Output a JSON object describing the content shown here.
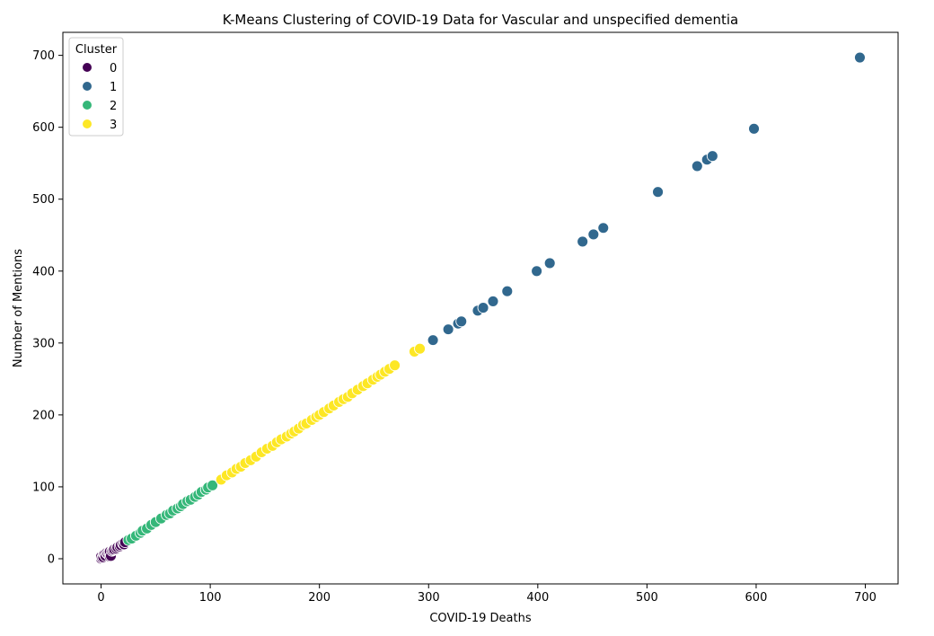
{
  "chart_data": {
    "type": "scatter",
    "title": "K-Means Clustering of COVID-19 Data for Vascular and unspecified dementia",
    "xlabel": "COVID-19 Deaths",
    "ylabel": "Number of Mentions",
    "xlim": [
      -35,
      730
    ],
    "ylim": [
      -35,
      732
    ],
    "xticks": [
      0,
      100,
      200,
      300,
      400,
      500,
      600,
      700
    ],
    "yticks": [
      0,
      100,
      200,
      300,
      400,
      500,
      600,
      700
    ],
    "grid": false,
    "legend": {
      "title": "Cluster",
      "position": "top-left",
      "entries": [
        "0",
        "1",
        "2",
        "3"
      ]
    },
    "colors": {
      "0": "#440154",
      "1": "#31688e",
      "2": "#35b779",
      "3": "#fde725"
    },
    "series": [
      {
        "name": "0",
        "points": [
          [
            0,
            0
          ],
          [
            0,
            3
          ],
          [
            1,
            1
          ],
          [
            2,
            5
          ],
          [
            2,
            2
          ],
          [
            3,
            6
          ],
          [
            4,
            4
          ],
          [
            5,
            8
          ],
          [
            6,
            7
          ],
          [
            7,
            9
          ],
          [
            8,
            3
          ],
          [
            8,
            10
          ],
          [
            9,
            4
          ],
          [
            10,
            11
          ],
          [
            11,
            12
          ],
          [
            12,
            13
          ],
          [
            14,
            14
          ],
          [
            15,
            16
          ],
          [
            17,
            17
          ],
          [
            18,
            19
          ],
          [
            20,
            21
          ],
          [
            21,
            20
          ],
          [
            22,
            23
          ]
        ]
      },
      {
        "name": "1",
        "points": [
          [
            304,
            304
          ],
          [
            318,
            319
          ],
          [
            327,
            327
          ],
          [
            330,
            330
          ],
          [
            345,
            345
          ],
          [
            350,
            349
          ],
          [
            359,
            358
          ],
          [
            372,
            372
          ],
          [
            399,
            400
          ],
          [
            411,
            411
          ],
          [
            441,
            441
          ],
          [
            451,
            451
          ],
          [
            460,
            460
          ],
          [
            510,
            510
          ],
          [
            546,
            546
          ],
          [
            555,
            555
          ],
          [
            560,
            560
          ],
          [
            598,
            598
          ],
          [
            695,
            697
          ]
        ]
      },
      {
        "name": "2",
        "points": [
          [
            25,
            26
          ],
          [
            28,
            28
          ],
          [
            32,
            32
          ],
          [
            36,
            36
          ],
          [
            38,
            39
          ],
          [
            42,
            42
          ],
          [
            46,
            47
          ],
          [
            50,
            51
          ],
          [
            55,
            56
          ],
          [
            60,
            61
          ],
          [
            63,
            63
          ],
          [
            66,
            67
          ],
          [
            70,
            70
          ],
          [
            73,
            73
          ],
          [
            75,
            76
          ],
          [
            79,
            80
          ],
          [
            82,
            82
          ],
          [
            86,
            86
          ],
          [
            89,
            89
          ],
          [
            92,
            93
          ],
          [
            96,
            96
          ],
          [
            98,
            99
          ],
          [
            102,
            102
          ]
        ]
      },
      {
        "name": "3",
        "points": [
          [
            110,
            110
          ],
          [
            115,
            116
          ],
          [
            120,
            120
          ],
          [
            124,
            125
          ],
          [
            128,
            128
          ],
          [
            132,
            133
          ],
          [
            137,
            137
          ],
          [
            142,
            142
          ],
          [
            147,
            148
          ],
          [
            152,
            153
          ],
          [
            157,
            157
          ],
          [
            161,
            162
          ],
          [
            165,
            166
          ],
          [
            170,
            170
          ],
          [
            174,
            174
          ],
          [
            177,
            177
          ],
          [
            181,
            181
          ],
          [
            185,
            186
          ],
          [
            188,
            188
          ],
          [
            193,
            193
          ],
          [
            197,
            197
          ],
          [
            200,
            200
          ],
          [
            204,
            204
          ],
          [
            209,
            209
          ],
          [
            213,
            213
          ],
          [
            218,
            218
          ],
          [
            222,
            222
          ],
          [
            226,
            225
          ],
          [
            230,
            230
          ],
          [
            235,
            235
          ],
          [
            240,
            240
          ],
          [
            244,
            244
          ],
          [
            249,
            249
          ],
          [
            253,
            253
          ],
          [
            256,
            256
          ],
          [
            260,
            260
          ],
          [
            264,
            264
          ],
          [
            269,
            269
          ],
          [
            287,
            288
          ],
          [
            292,
            292
          ]
        ]
      }
    ]
  }
}
